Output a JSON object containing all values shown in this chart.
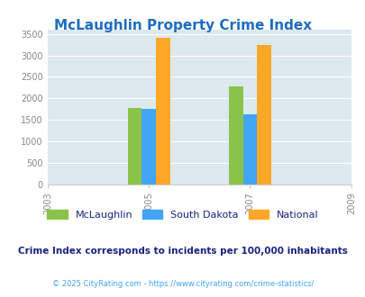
{
  "title": "McLaughlin Property Crime Index",
  "title_color": "#1e6dbf",
  "years": [
    2005,
    2007
  ],
  "mclaughlin": [
    1775,
    2270
  ],
  "south_dakota": [
    1745,
    1635
  ],
  "national": [
    3415,
    3245
  ],
  "bar_colors": {
    "mclaughlin": "#8bc34a",
    "south_dakota": "#42a5f5",
    "national": "#ffa726"
  },
  "legend_labels": [
    "McLaughlin",
    "South Dakota",
    "National"
  ],
  "note": "Crime Index corresponds to incidents per 100,000 inhabitants",
  "note_color": "#1a237e",
  "copyright": "© 2025 CityRating.com - https://www.cityrating.com/crime-statistics/",
  "copyright_color": "#42a5f5",
  "xlim": [
    2003,
    2009
  ],
  "ylim": [
    0,
    3600
  ],
  "yticks": [
    0,
    500,
    1000,
    1500,
    2000,
    2500,
    3000,
    3500
  ],
  "xticks": [
    2003,
    2005,
    2007,
    2009
  ],
  "bg_color": "#dce9ef",
  "bar_width": 0.28
}
